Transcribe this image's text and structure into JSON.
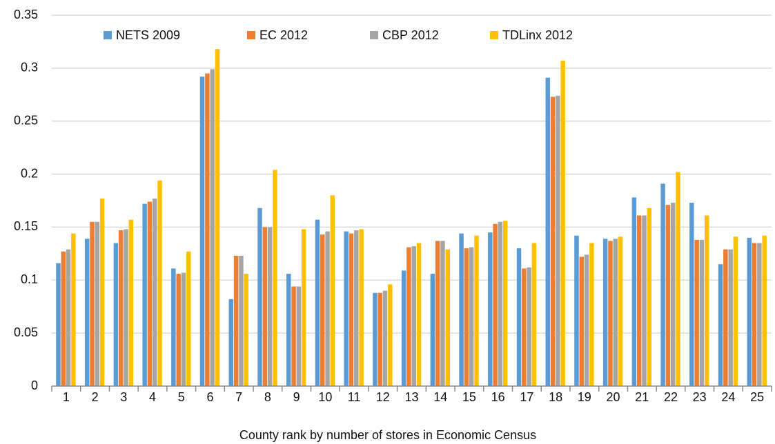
{
  "chart_data": {
    "type": "bar",
    "x_label": "County rank by number of stores in Economic Census",
    "categories": [
      "1",
      "2",
      "3",
      "4",
      "5",
      "6",
      "7",
      "8",
      "9",
      "10",
      "11",
      "12",
      "13",
      "14",
      "15",
      "16",
      "17",
      "18",
      "19",
      "20",
      "21",
      "22",
      "23",
      "24",
      "25"
    ],
    "series": [
      {
        "name": "NETS 2009",
        "color": "#5b9bd5",
        "values": [
          0.116,
          0.139,
          0.135,
          0.172,
          0.111,
          0.292,
          0.082,
          0.168,
          0.106,
          0.157,
          0.146,
          0.088,
          0.109,
          0.106,
          0.144,
          0.145,
          0.13,
          0.291,
          0.142,
          0.139,
          0.178,
          0.191,
          0.173,
          0.115,
          0.14
        ]
      },
      {
        "name": "EC 2012",
        "color": "#ed7d31",
        "values": [
          0.127,
          0.155,
          0.147,
          0.174,
          0.106,
          0.295,
          0.123,
          0.15,
          0.094,
          0.143,
          0.144,
          0.088,
          0.131,
          0.137,
          0.13,
          0.153,
          0.111,
          0.273,
          0.122,
          0.137,
          0.161,
          0.171,
          0.138,
          0.129,
          0.135
        ]
      },
      {
        "name": "CBP 2012",
        "color": "#a5a5a5",
        "values": [
          0.129,
          0.155,
          0.148,
          0.177,
          0.107,
          0.299,
          0.123,
          0.15,
          0.094,
          0.146,
          0.147,
          0.09,
          0.132,
          0.137,
          0.131,
          0.155,
          0.112,
          0.274,
          0.124,
          0.139,
          0.161,
          0.173,
          0.138,
          0.129,
          0.135
        ]
      },
      {
        "name": "TDLinx 2012",
        "color": "#ffc000",
        "values": [
          0.144,
          0.177,
          0.157,
          0.194,
          0.127,
          0.318,
          0.106,
          0.204,
          0.148,
          0.18,
          0.148,
          0.096,
          0.135,
          0.129,
          0.142,
          0.156,
          0.135,
          0.307,
          0.135,
          0.141,
          0.168,
          0.202,
          0.161,
          0.141,
          0.142
        ]
      }
    ],
    "ylim": [
      0,
      0.35
    ],
    "yticks": [
      0,
      0.05,
      0.1,
      0.15,
      0.2,
      0.25,
      0.3,
      0.35
    ],
    "grid": true
  }
}
